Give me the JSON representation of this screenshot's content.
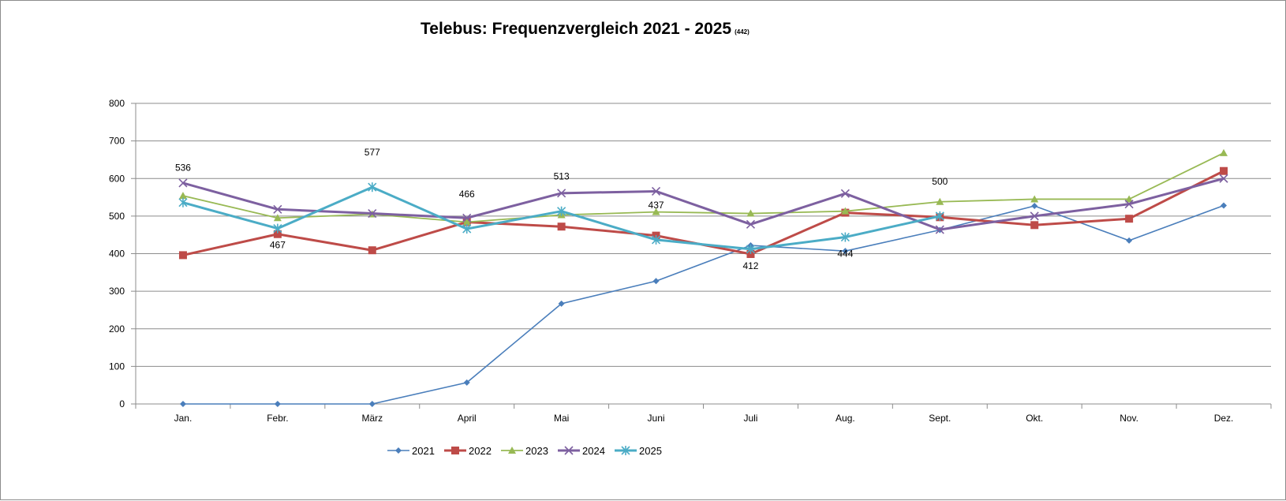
{
  "chart_data": {
    "type": "line",
    "title": "Telebus: Frequenzvergleich 2021 - 2025",
    "title_note": "(442)",
    "categories": [
      "Jan.",
      "Febr.",
      "März",
      "April",
      "Mai",
      "Juni",
      "Juli",
      "Aug.",
      "Sept.",
      "Okt.",
      "Nov.",
      "Dez."
    ],
    "ylim": [
      0,
      800
    ],
    "yticks": [
      "0",
      "100",
      "200",
      "300",
      "400",
      "500",
      "600",
      "700",
      "800"
    ],
    "grid": true,
    "legend_position": "bottom",
    "series": [
      {
        "name": "2021",
        "color": "#4a7ebb",
        "marker": "diamond",
        "values": [
          0,
          0,
          0,
          57,
          267,
          327,
          422,
          407,
          463,
          527,
          435,
          528
        ]
      },
      {
        "name": "2022",
        "color": "#be4b48",
        "marker": "square",
        "values": [
          396,
          452,
          409,
          484,
          472,
          448,
          399,
          509,
          497,
          476,
          493,
          620
        ]
      },
      {
        "name": "2023",
        "color": "#98b954",
        "marker": "triangle",
        "values": [
          554,
          495,
          505,
          484,
          503,
          511,
          507,
          513,
          538,
          545,
          545,
          668
        ]
      },
      {
        "name": "2024",
        "color": "#7d60a0",
        "marker": "x",
        "values": [
          588,
          518,
          507,
          495,
          561,
          566,
          478,
          560,
          464,
          500,
          532,
          600
        ]
      },
      {
        "name": "2025",
        "color": "#4bacc6",
        "marker": "asterisk",
        "values": [
          536,
          467,
          577,
          466,
          513,
          437,
          412,
          444,
          500,
          null,
          null,
          null
        ]
      }
    ],
    "data_labels": [
      {
        "series": "2025",
        "index": 0,
        "text": "536",
        "position": "above"
      },
      {
        "series": "2025",
        "index": 1,
        "text": "467",
        "position": "below"
      },
      {
        "series": "2025",
        "index": 2,
        "text": "577",
        "position": "above"
      },
      {
        "series": "2025",
        "index": 3,
        "text": "466",
        "position": "above"
      },
      {
        "series": "2025",
        "index": 4,
        "text": "513",
        "position": "above"
      },
      {
        "series": "2025",
        "index": 5,
        "text": "437",
        "position": "above"
      },
      {
        "series": "2025",
        "index": 6,
        "text": "412",
        "position": "below"
      },
      {
        "series": "2025",
        "index": 7,
        "text": "444",
        "position": "below"
      },
      {
        "series": "2025",
        "index": 8,
        "text": "500",
        "position": "above"
      }
    ]
  }
}
